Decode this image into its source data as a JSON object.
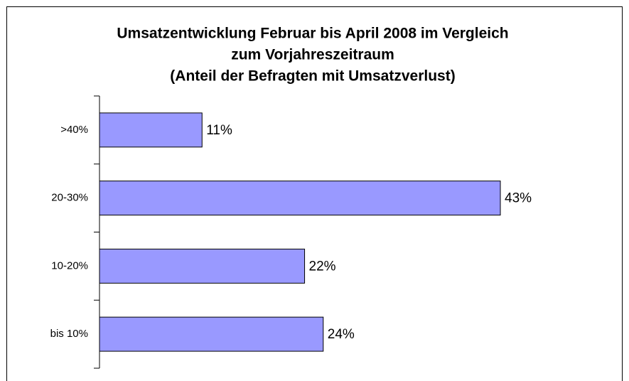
{
  "chart_data": {
    "type": "bar",
    "orientation": "horizontal",
    "title": [
      "Umsatzentwicklung Februar bis April 2008 im Vergleich",
      "zum Vorjahreszeitraum",
      "(Anteil der Befragten mit Umsatzverlust)"
    ],
    "categories": [
      ">40%",
      "20-30%",
      "10-20%",
      "bis 10%"
    ],
    "values": [
      11,
      43,
      22,
      24
    ],
    "value_labels": [
      "11%",
      "43%",
      "22%",
      "24%"
    ],
    "color": "#9999ff"
  }
}
